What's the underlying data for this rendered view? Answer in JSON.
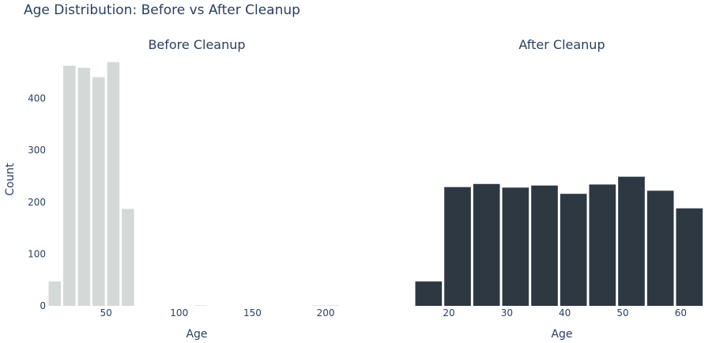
{
  "title": "Age Distribution: Before vs After Cleanup",
  "colors": {
    "before": "#d3d9d6",
    "after": "#2e3842",
    "text": "#2a3f5f",
    "background": "#ffffff"
  },
  "chart_data": [
    {
      "type": "bar",
      "subtitle": "Before Cleanup",
      "xlabel": "Age",
      "ylabel": "Count",
      "xlim": [
        10,
        214
      ],
      "ylim": [
        0,
        480
      ],
      "xticks": [
        50,
        100,
        150,
        200
      ],
      "yticks": [
        0,
        100,
        200,
        300,
        400
      ],
      "grid": false,
      "bars": [
        {
          "x0": 10,
          "x1": 20,
          "value": 47
        },
        {
          "x0": 20,
          "x1": 30,
          "value": 463
        },
        {
          "x0": 30,
          "x1": 40,
          "value": 459
        },
        {
          "x0": 40,
          "x1": 50,
          "value": 441
        },
        {
          "x0": 50,
          "x1": 60,
          "value": 470
        },
        {
          "x0": 60,
          "x1": 70,
          "value": 187
        },
        {
          "x0": 110,
          "x1": 120,
          "value": 1
        },
        {
          "x0": 190,
          "x1": 200,
          "value": 1
        },
        {
          "x0": 200,
          "x1": 210,
          "value": 1
        }
      ]
    },
    {
      "type": "bar",
      "subtitle": "After Cleanup",
      "xlabel": "Age",
      "ylabel": "",
      "xlim": [
        14,
        65
      ],
      "ylim": [
        0,
        480
      ],
      "xticks": [
        20,
        30,
        40,
        50,
        60
      ],
      "yticks": [],
      "grid": false,
      "bars": [
        {
          "x0": 14,
          "x1": 19,
          "value": 47
        },
        {
          "x0": 19,
          "x1": 24,
          "value": 229
        },
        {
          "x0": 24,
          "x1": 29,
          "value": 235
        },
        {
          "x0": 29,
          "x1": 34,
          "value": 228
        },
        {
          "x0": 34,
          "x1": 39,
          "value": 232
        },
        {
          "x0": 39,
          "x1": 44,
          "value": 216
        },
        {
          "x0": 44,
          "x1": 49,
          "value": 234
        },
        {
          "x0": 49,
          "x1": 54,
          "value": 249
        },
        {
          "x0": 54,
          "x1": 59,
          "value": 222
        },
        {
          "x0": 59,
          "x1": 64,
          "value": 188
        }
      ]
    }
  ]
}
